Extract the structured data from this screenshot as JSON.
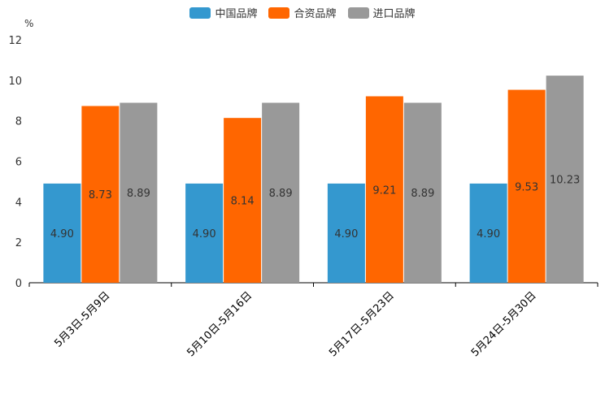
{
  "chart_data": {
    "type": "bar",
    "unit_label": "%",
    "categories": [
      "5月3日-5月9日",
      "5月10日-5月16日",
      "5月17日-5月23日",
      "5月24日-5月30日"
    ],
    "series": [
      {
        "name": "中国品牌",
        "color": "#3498cf",
        "values": [
          4.9,
          4.9,
          4.9,
          4.9
        ]
      },
      {
        "name": "合资品牌",
        "color": "#ff6600",
        "values": [
          8.73,
          8.14,
          9.21,
          9.53
        ]
      },
      {
        "name": "进口品牌",
        "color": "#999999",
        "values": [
          8.89,
          8.89,
          8.89,
          10.23
        ]
      }
    ],
    "y_ticks": [
      0,
      2,
      4,
      6,
      8,
      10,
      12
    ],
    "ylim": [
      0,
      12
    ],
    "legend_position": "top-center",
    "grid": false
  }
}
